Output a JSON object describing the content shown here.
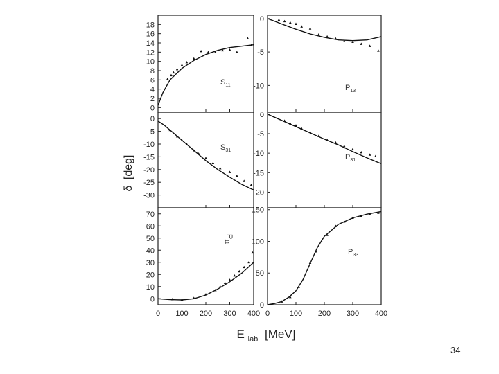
{
  "slide": {
    "page_number": "34"
  },
  "figure": {
    "ylabel_symbol": "δ",
    "ylabel_unit": "[deg]",
    "xlabel_main": "E",
    "xlabel_sub": "lab",
    "xlabel_unit": "[MeV]"
  },
  "chart_data": [
    {
      "type": "line",
      "id": "S11",
      "label_main": "S",
      "label_sub": "11",
      "xlim": [
        0,
        400
      ],
      "ylim": [
        -1,
        20
      ],
      "yticks": [
        0,
        2,
        4,
        6,
        8,
        10,
        12,
        14,
        16,
        18
      ],
      "xticks": [
        0,
        100,
        200,
        300,
        400
      ],
      "curve": [
        [
          0,
          0.5
        ],
        [
          20,
          3.2
        ],
        [
          50,
          6.0
        ],
        [
          100,
          8.5
        ],
        [
          150,
          10.2
        ],
        [
          200,
          11.5
        ],
        [
          250,
          12.4
        ],
        [
          300,
          13.0
        ],
        [
          350,
          13.3
        ],
        [
          400,
          13.6
        ]
      ],
      "points": [
        [
          40,
          6.2
        ],
        [
          55,
          7.0
        ],
        [
          65,
          7.6
        ],
        [
          80,
          8.3
        ],
        [
          100,
          9.2
        ],
        [
          120,
          9.8
        ],
        [
          150,
          10.6
        ],
        [
          180,
          12.2
        ],
        [
          210,
          12.0
        ],
        [
          240,
          12.0
        ],
        [
          270,
          12.4
        ],
        [
          300,
          12.5
        ],
        [
          330,
          12.0
        ],
        [
          375,
          15.0
        ],
        [
          390,
          13.5
        ]
      ]
    },
    {
      "type": "line",
      "id": "P13",
      "label_main": "P",
      "label_sub": "13",
      "xlim": [
        0,
        400
      ],
      "ylim": [
        -14,
        0.5
      ],
      "yticks": [
        0,
        -5,
        -10
      ],
      "xticks": [
        0,
        100,
        200,
        300,
        400
      ],
      "curve": [
        [
          0,
          0
        ],
        [
          50,
          -0.8
        ],
        [
          100,
          -1.6
        ],
        [
          150,
          -2.3
        ],
        [
          200,
          -2.8
        ],
        [
          250,
          -3.2
        ],
        [
          300,
          -3.3
        ],
        [
          350,
          -3.2
        ],
        [
          400,
          -2.7
        ]
      ],
      "points": [
        [
          40,
          -0.2
        ],
        [
          60,
          -0.4
        ],
        [
          80,
          -0.6
        ],
        [
          100,
          -0.8
        ],
        [
          120,
          -1.2
        ],
        [
          150,
          -1.5
        ],
        [
          180,
          -2.4
        ],
        [
          210,
          -2.7
        ],
        [
          240,
          -3.0
        ],
        [
          270,
          -3.4
        ],
        [
          300,
          -3.5
        ],
        [
          330,
          -3.8
        ],
        [
          360,
          -4.1
        ],
        [
          390,
          -4.8
        ]
      ]
    },
    {
      "type": "line",
      "id": "S31",
      "label_main": "S",
      "label_sub": "31",
      "xlim": [
        0,
        400
      ],
      "ylim": [
        -35,
        2.5
      ],
      "yticks": [
        0,
        -5,
        -10,
        -15,
        -20,
        -25,
        -30
      ],
      "xticks": [
        0,
        100,
        200,
        300,
        400
      ],
      "curve": [
        [
          0,
          -1
        ],
        [
          25,
          -2.5
        ],
        [
          50,
          -4.5
        ],
        [
          100,
          -8.5
        ],
        [
          150,
          -12.5
        ],
        [
          200,
          -16.5
        ],
        [
          250,
          -20.0
        ],
        [
          300,
          -23.0
        ],
        [
          350,
          -25.8
        ],
        [
          400,
          -28.0
        ]
      ],
      "points": [
        [
          50,
          -4.5
        ],
        [
          80,
          -7.0
        ],
        [
          100,
          -8.5
        ],
        [
          120,
          -10.0
        ],
        [
          150,
          -12.5
        ],
        [
          170,
          -13.8
        ],
        [
          200,
          -15.5
        ],
        [
          230,
          -17.5
        ],
        [
          260,
          -19.5
        ],
        [
          300,
          -21.0
        ],
        [
          330,
          -22.5
        ],
        [
          360,
          -24.5
        ],
        [
          390,
          -26.0
        ]
      ]
    },
    {
      "type": "line",
      "id": "P31",
      "label_main": "P",
      "label_sub": "31",
      "xlim": [
        0,
        400
      ],
      "ylim": [
        -24,
        0.5
      ],
      "yticks": [
        0,
        -5,
        -10,
        -15,
        -20
      ],
      "xticks": [
        0,
        100,
        200,
        300,
        400
      ],
      "curve": [
        [
          0,
          0
        ],
        [
          50,
          -1.6
        ],
        [
          100,
          -3.2
        ],
        [
          150,
          -4.8
        ],
        [
          200,
          -6.4
        ],
        [
          250,
          -7.9
        ],
        [
          300,
          -9.6
        ],
        [
          350,
          -11.2
        ],
        [
          400,
          -12.7
        ]
      ],
      "points": [
        [
          60,
          -1.7
        ],
        [
          80,
          -2.4
        ],
        [
          100,
          -2.9
        ],
        [
          120,
          -3.7
        ],
        [
          150,
          -4.6
        ],
        [
          180,
          -5.6
        ],
        [
          210,
          -6.6
        ],
        [
          240,
          -7.3
        ],
        [
          270,
          -8.2
        ],
        [
          300,
          -9.0
        ],
        [
          330,
          -9.8
        ],
        [
          360,
          -10.4
        ],
        [
          380,
          -10.8
        ]
      ]
    },
    {
      "type": "line",
      "id": "P11",
      "label_main": "P",
      "label_sub": "11",
      "xlim": [
        0,
        400
      ],
      "ylim": [
        -5,
        75
      ],
      "yticks": [
        0,
        10,
        20,
        30,
        40,
        50,
        60,
        70
      ],
      "xticks": [
        0,
        100,
        200,
        300,
        400
      ],
      "curve": [
        [
          0,
          0
        ],
        [
          50,
          -0.8
        ],
        [
          100,
          -1.0
        ],
        [
          150,
          0
        ],
        [
          200,
          3.0
        ],
        [
          250,
          8.0
        ],
        [
          300,
          14.0
        ],
        [
          350,
          21.0
        ],
        [
          400,
          30.0
        ]
      ],
      "points": [
        [
          60,
          -0.5
        ],
        [
          100,
          -0.8
        ],
        [
          150,
          0.5
        ],
        [
          200,
          3.5
        ],
        [
          240,
          7.0
        ],
        [
          260,
          10.0
        ],
        [
          280,
          13.0
        ],
        [
          300,
          15.5
        ],
        [
          320,
          19.0
        ],
        [
          340,
          22.5
        ],
        [
          360,
          26.0
        ],
        [
          380,
          30.0
        ],
        [
          395,
          38.0
        ]
      ]
    },
    {
      "type": "line",
      "id": "P33",
      "label_main": "P",
      "label_sub": "33",
      "xlim": [
        0,
        400
      ],
      "ylim": [
        0,
        153
      ],
      "yticks": [
        0,
        50,
        100,
        150
      ],
      "xticks": [
        0,
        100,
        200,
        300,
        400
      ],
      "curve": [
        [
          0,
          0
        ],
        [
          25,
          2
        ],
        [
          50,
          5
        ],
        [
          75,
          12
        ],
        [
          100,
          22
        ],
        [
          125,
          40
        ],
        [
          150,
          65
        ],
        [
          175,
          90
        ],
        [
          200,
          108
        ],
        [
          250,
          127
        ],
        [
          300,
          137
        ],
        [
          350,
          143
        ],
        [
          400,
          147
        ]
      ],
      "points": [
        [
          50,
          5
        ],
        [
          80,
          12
        ],
        [
          110,
          28
        ],
        [
          150,
          66
        ],
        [
          170,
          84
        ],
        [
          190,
          100
        ],
        [
          210,
          110
        ],
        [
          240,
          124
        ],
        [
          270,
          131
        ],
        [
          300,
          137
        ],
        [
          330,
          140
        ],
        [
          360,
          143
        ],
        [
          390,
          145
        ]
      ]
    }
  ]
}
